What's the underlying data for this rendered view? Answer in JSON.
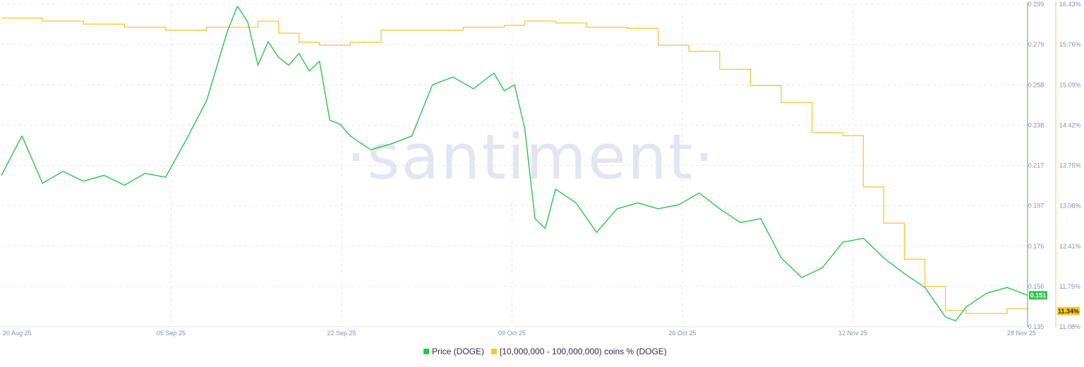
{
  "watermark": "·santiment·",
  "colors": {
    "price": "#2bc54b",
    "holders": "#ffc533",
    "grid": "#e6e8ee",
    "axis_text": "#8a8fa8",
    "price_badge_text": "#ffffff",
    "holders_badge_text": "#3a2f00"
  },
  "chart_data": {
    "type": "line",
    "title": "",
    "x_ticks": [
      "20 Aug 25",
      "05 Sep 25",
      "22 Sep 25",
      "09 Oct 25",
      "26 Oct 25",
      "12 Nov 25",
      "28 Nov 25"
    ],
    "x_range": [
      "2025-08-20",
      "2025-11-28"
    ],
    "y_left_ticks": [
      "0.299",
      "0.279",
      "0.258",
      "0.238",
      "0.217",
      "0.197",
      "0.176",
      "0.156",
      "0.135"
    ],
    "y_left_range": [
      0.135,
      0.299
    ],
    "y_right_ticks": [
      "16.43%",
      "15.76%",
      "15.09%",
      "14.42%",
      "13.75%",
      "13.08%",
      "12.41%",
      "11.75%",
      "11.08%"
    ],
    "y_right_range": [
      11.08,
      16.43
    ],
    "grid": true,
    "legend_position": "bottom-center",
    "current_price_label": "0.151",
    "current_holders_label": "11.34%",
    "series": [
      {
        "name": "Price (DOGE)",
        "axis": "left",
        "x": [
          "2025-08-20",
          "2025-08-22",
          "2025-08-24",
          "2025-08-26",
          "2025-08-28",
          "2025-08-30",
          "2025-09-01",
          "2025-09-03",
          "2025-09-05",
          "2025-09-07",
          "2025-09-09",
          "2025-09-11",
          "2025-09-12",
          "2025-09-13",
          "2025-09-14",
          "2025-09-15",
          "2025-09-16",
          "2025-09-17",
          "2025-09-18",
          "2025-09-19",
          "2025-09-20",
          "2025-09-21",
          "2025-09-22",
          "2025-09-23",
          "2025-09-25",
          "2025-09-27",
          "2025-09-29",
          "2025-10-01",
          "2025-10-03",
          "2025-10-05",
          "2025-10-07",
          "2025-10-08",
          "2025-10-09",
          "2025-10-10",
          "2025-10-11",
          "2025-10-12",
          "2025-10-13",
          "2025-10-15",
          "2025-10-17",
          "2025-10-19",
          "2025-10-21",
          "2025-10-23",
          "2025-10-25",
          "2025-10-27",
          "2025-10-29",
          "2025-10-31",
          "2025-11-02",
          "2025-11-04",
          "2025-11-06",
          "2025-11-08",
          "2025-11-10",
          "2025-11-12",
          "2025-11-14",
          "2025-11-16",
          "2025-11-18",
          "2025-11-20",
          "2025-11-21",
          "2025-11-22",
          "2025-11-24",
          "2025-11-26",
          "2025-11-28"
        ],
        "y": [
          0.212,
          0.232,
          0.208,
          0.214,
          0.209,
          0.212,
          0.207,
          0.213,
          0.211,
          0.23,
          0.25,
          0.285,
          0.298,
          0.29,
          0.268,
          0.28,
          0.272,
          0.268,
          0.274,
          0.265,
          0.27,
          0.24,
          0.238,
          0.232,
          0.225,
          0.228,
          0.232,
          0.258,
          0.262,
          0.256,
          0.264,
          0.255,
          0.258,
          0.236,
          0.19,
          0.185,
          0.205,
          0.198,
          0.183,
          0.195,
          0.198,
          0.195,
          0.197,
          0.203,
          0.195,
          0.188,
          0.19,
          0.17,
          0.16,
          0.165,
          0.178,
          0.18,
          0.17,
          0.162,
          0.155,
          0.14,
          0.138,
          0.145,
          0.152,
          0.155,
          0.151
        ]
      },
      {
        "name": "[10,000,000 - 100,000,000) coins % (DOGE)",
        "axis": "right",
        "x": [
          "2025-08-20",
          "2025-08-24",
          "2025-08-28",
          "2025-09-01",
          "2025-09-05",
          "2025-09-09",
          "2025-09-12",
          "2025-09-14",
          "2025-09-16",
          "2025-09-18",
          "2025-09-20",
          "2025-09-23",
          "2025-09-26",
          "2025-09-30",
          "2025-10-04",
          "2025-10-08",
          "2025-10-10",
          "2025-10-13",
          "2025-10-16",
          "2025-10-20",
          "2025-10-23",
          "2025-10-26",
          "2025-10-29",
          "2025-11-01",
          "2025-11-04",
          "2025-11-07",
          "2025-11-10",
          "2025-11-12",
          "2025-11-14",
          "2025-11-16",
          "2025-11-18",
          "2025-11-20",
          "2025-11-22",
          "2025-11-24",
          "2025-11-26",
          "2025-11-28"
        ],
        "y": [
          16.2,
          16.15,
          16.1,
          16.05,
          16.0,
          16.05,
          16.05,
          16.15,
          15.95,
          15.8,
          15.75,
          15.8,
          16.0,
          16.0,
          16.05,
          16.08,
          16.15,
          16.12,
          16.05,
          16.03,
          15.75,
          15.65,
          15.35,
          15.08,
          14.8,
          14.3,
          14.25,
          13.4,
          12.8,
          12.2,
          11.75,
          11.35,
          11.3,
          11.3,
          11.38,
          11.34
        ]
      }
    ]
  }
}
